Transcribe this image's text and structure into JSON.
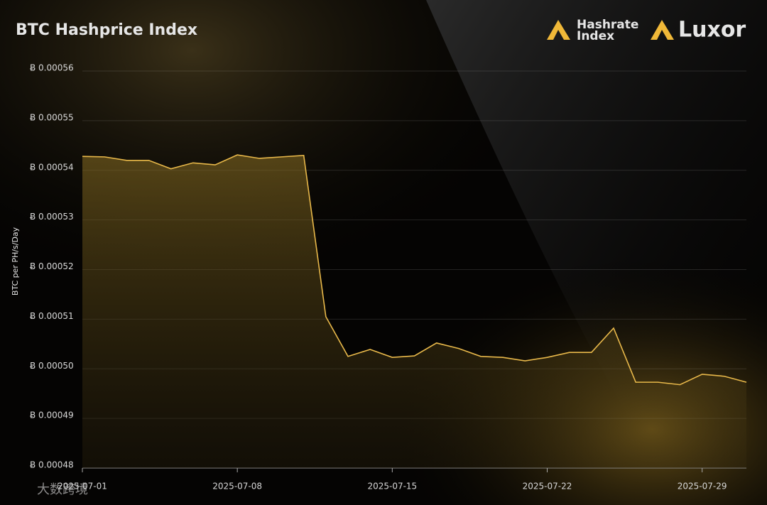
{
  "chart_data": {
    "type": "line",
    "title": "BTC Hashprice Index",
    "brand": {
      "name": "Hashrate",
      "sub": "Index",
      "company": "Luxor"
    },
    "watermark": "大数跨境",
    "y_label": "BTC per PH/s/Day",
    "x": [
      "2025-07-01",
      "2025-07-02",
      "2025-07-03",
      "2025-07-04",
      "2025-07-05",
      "2025-07-06",
      "2025-07-07",
      "2025-07-08",
      "2025-07-09",
      "2025-07-10",
      "2025-07-11",
      "2025-07-12",
      "2025-07-13",
      "2025-07-14",
      "2025-07-15",
      "2025-07-16",
      "2025-07-17",
      "2025-07-18",
      "2025-07-19",
      "2025-07-20",
      "2025-07-21",
      "2025-07-22",
      "2025-07-23",
      "2025-07-24",
      "2025-07-25",
      "2025-07-26",
      "2025-07-27",
      "2025-07-28",
      "2025-07-29",
      "2025-07-30",
      "2025-07-31"
    ],
    "series": [
      {
        "name": "Hashprice",
        "color": "#e8b84a",
        "values": [
          0.0005428,
          0.0005427,
          0.000542,
          0.000542,
          0.0005403,
          0.0005415,
          0.0005411,
          0.0005431,
          0.0005424,
          0.0005427,
          0.000543,
          0.0005105,
          0.0005025,
          0.0005039,
          0.0005023,
          0.0005026,
          0.0005052,
          0.0005041,
          0.0005025,
          0.0005023,
          0.0005016,
          0.0005023,
          0.0005033,
          0.0005033,
          0.0005082,
          0.0004973,
          0.0004973,
          0.0004968,
          0.0004989,
          0.0004985,
          0.0004973
        ]
      }
    ],
    "xlim": [
      "2025-07-01",
      "2025-07-31"
    ],
    "xticks": [
      "2025-07-01",
      "2025-07-08",
      "2025-07-15",
      "2025-07-22",
      "2025-07-29"
    ],
    "ylim": [
      0.00048,
      0.00056
    ],
    "yticks": [
      {
        "value": 0.00048,
        "label": "Ƀ 0.00048"
      },
      {
        "value": 0.00049,
        "label": "Ƀ 0.00049"
      },
      {
        "value": 0.0005,
        "label": "Ƀ 0.00050"
      },
      {
        "value": 0.00051,
        "label": "Ƀ 0.00051"
      },
      {
        "value": 0.00052,
        "label": "Ƀ 0.00052"
      },
      {
        "value": 0.00053,
        "label": "Ƀ 0.00053"
      },
      {
        "value": 0.00054,
        "label": "Ƀ 0.00054"
      },
      {
        "value": 0.00055,
        "label": "Ƀ 0.00055"
      },
      {
        "value": 0.00056,
        "label": "Ƀ 0.00056"
      }
    ],
    "grid": true
  }
}
